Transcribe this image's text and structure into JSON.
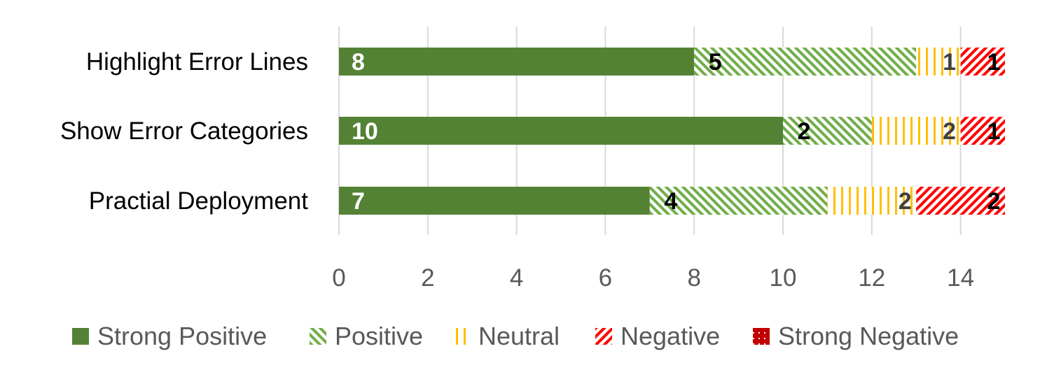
{
  "chart_data": {
    "type": "bar",
    "orientation": "horizontal",
    "stacked": true,
    "categories": [
      "Highlight Error Lines",
      "Show Error Categories",
      "Practial Deployment"
    ],
    "series": [
      {
        "name": "Strong Positive",
        "values": [
          8,
          10,
          7
        ],
        "color": "#548235",
        "pattern": "solid",
        "label_color": "#ffffff"
      },
      {
        "name": "Positive",
        "values": [
          5,
          2,
          4
        ],
        "color": "#70AD47",
        "pattern": "diagonal-down",
        "label_color": "#000000"
      },
      {
        "name": "Neutral",
        "values": [
          1,
          2,
          2
        ],
        "color": "#FFC000",
        "pattern": "vertical",
        "label_color": "#404040"
      },
      {
        "name": "Negative",
        "values": [
          1,
          1,
          2
        ],
        "color": "#FF0000",
        "pattern": "diagonal-up",
        "label_color": "#000000"
      },
      {
        "name": "Strong Negative",
        "values": [
          0,
          0,
          0
        ],
        "color": "#C00000",
        "pattern": "dotted",
        "label_color": "#000000"
      }
    ],
    "xlim": [
      0,
      15
    ],
    "x_ticks": [
      "0",
      "2",
      "4",
      "6",
      "8",
      "10",
      "12",
      "14"
    ],
    "grid": "vertical",
    "legend_position": "bottom"
  }
}
